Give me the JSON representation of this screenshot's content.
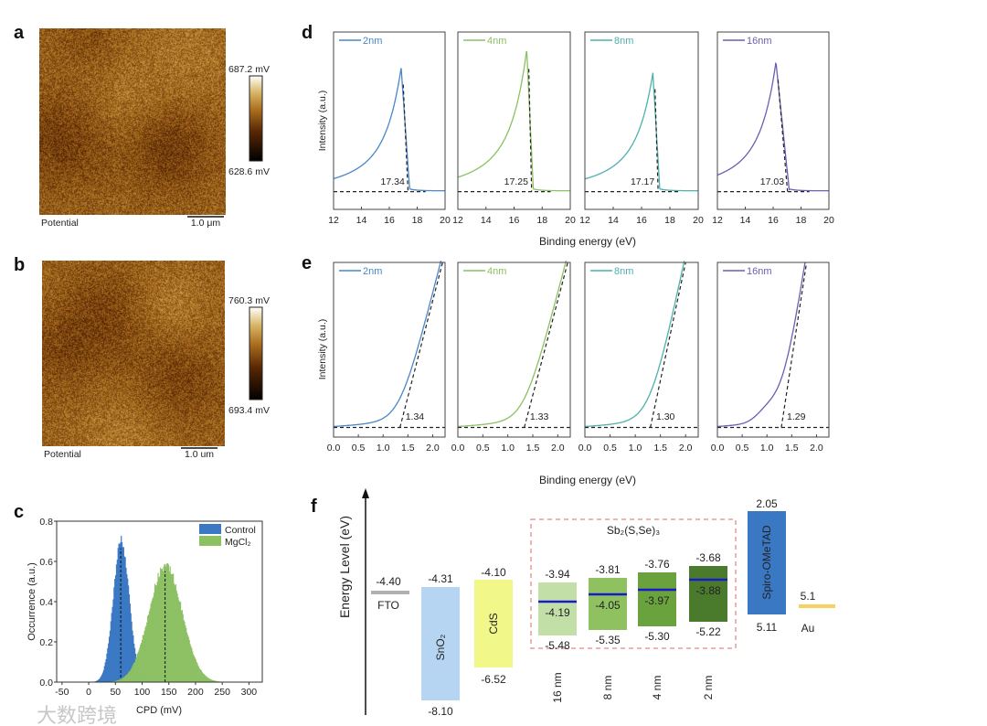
{
  "figure_labels": {
    "a": "a",
    "b": "b",
    "c": "c",
    "d": "d",
    "e": "e",
    "f": "f"
  },
  "watermark": "大数跨境",
  "chart_data": [
    {
      "panel": "a",
      "type": "heatmap",
      "caption": "Potential",
      "scalebar": "1.0 μm",
      "colorbar_max": "687.2 mV",
      "colorbar_min": "628.6 mV"
    },
    {
      "panel": "b",
      "type": "heatmap",
      "caption": "Potential",
      "scalebar": "1.0 um",
      "colorbar_max": "760.3 mV",
      "colorbar_min": "693.4 mV"
    },
    {
      "panel": "c",
      "type": "bar",
      "subtype": "histogram",
      "xlabel": "CPD (mV)",
      "ylabel": "Occurrence (a.u.)",
      "xlim": [
        -60,
        325
      ],
      "ylim": [
        0,
        0.8
      ],
      "xticks": [
        "-50",
        "0",
        "50",
        "100",
        "150",
        "200",
        "250",
        "300"
      ],
      "yticks": [
        "0.0",
        "0.2",
        "0.4",
        "0.6",
        "0.8"
      ],
      "legend": "top-right",
      "series": [
        {
          "name": "Control",
          "color": "#3a78c4",
          "mean": 60,
          "sd": 15,
          "peak": 0.7
        },
        {
          "name": "MgCl₂",
          "color": "#8cc063",
          "mean": 143,
          "sd": 31,
          "peak": 0.58
        }
      ]
    },
    {
      "panel": "d",
      "type": "line",
      "xlabel": "Binding energy (eV)",
      "ylabel": "Intensity (a.u.)",
      "xlim": [
        12,
        20
      ],
      "xticks": [
        "12",
        "14",
        "16",
        "18",
        "20"
      ],
      "series": [
        {
          "name": "2nm",
          "color": "#4a86c8",
          "peak_x": 16.85,
          "peak": 0.8,
          "cutoff": 17.34,
          "cutoff_label": "17.34"
        },
        {
          "name": "4nm",
          "color": "#8cc063",
          "peak_x": 16.9,
          "peak": 0.9,
          "cutoff": 17.25,
          "cutoff_label": "17.25"
        },
        {
          "name": "8nm",
          "color": "#4fb0ac",
          "peak_x": 16.8,
          "peak": 0.77,
          "cutoff": 17.17,
          "cutoff_label": "17.17"
        },
        {
          "name": "16nm",
          "color": "#6a5fb0",
          "peak_x": 16.2,
          "peak": 0.83,
          "cutoff": 17.03,
          "cutoff_label": "17.03"
        }
      ]
    },
    {
      "panel": "e",
      "type": "line",
      "xlabel": "Binding energy (eV)",
      "ylabel": "Intensity (a.u.)",
      "xlim": [
        0,
        2.25
      ],
      "xticks": [
        "0.0",
        "0.5",
        "1.0",
        "1.5",
        "2.0"
      ],
      "series": [
        {
          "name": "2nm",
          "color": "#4a86c8",
          "onset": 1.34,
          "onset_label": "1.34",
          "x_top": 2.2
        },
        {
          "name": "4nm",
          "color": "#8cc063",
          "onset": 1.33,
          "onset_label": "1.33",
          "x_top": 2.2
        },
        {
          "name": "8nm",
          "color": "#4fb0ac",
          "onset": 1.3,
          "onset_label": "1.30",
          "x_top": 2.0
        },
        {
          "name": "16nm",
          "color": "#6a5fb0",
          "onset": 1.29,
          "onset_label": "1.29",
          "x_top": 1.8
        }
      ]
    },
    {
      "panel": "f",
      "type": "diagram",
      "ylabel": "Energy Level (eV)",
      "group_title": "Sb₂(S,Se)₃",
      "fto": {
        "name": "FTO",
        "level": "-4.40",
        "color": "#b0b0b0"
      },
      "sno2": {
        "name": "SnO₂",
        "top": "-4.31",
        "bottom": "-8.10",
        "color": "#b5d5f2"
      },
      "cds": {
        "name": "CdS",
        "top": "-4.10",
        "bottom": "-6.52",
        "color": "#f2f78a"
      },
      "sb": [
        {
          "name": "16 nm",
          "cb": "-3.94",
          "ef": "-4.19",
          "vb": "-5.48",
          "color": "#c3dfa8"
        },
        {
          "name": "8 nm",
          "cb": "-3.81",
          "ef": "-4.05",
          "vb": "-5.35",
          "color": "#8fc160"
        },
        {
          "name": "4 nm",
          "cb": "-3.76",
          "ef": "-3.97",
          "vb": "-5.30",
          "color": "#6aa33d"
        },
        {
          "name": "2 nm",
          "cb": "-3.68",
          "ef": "-3.88",
          "vb": "-5.22",
          "color": "#4a7a2c"
        }
      ],
      "spiro": {
        "name": "Spiro-OMeTAD",
        "top": "2.05",
        "bottom": "5.11",
        "color": "#3a78c4"
      },
      "au": {
        "name": "Au",
        "level": "5.1",
        "color": "#f7d060"
      },
      "fermi_color": "#1a1acc"
    }
  ]
}
